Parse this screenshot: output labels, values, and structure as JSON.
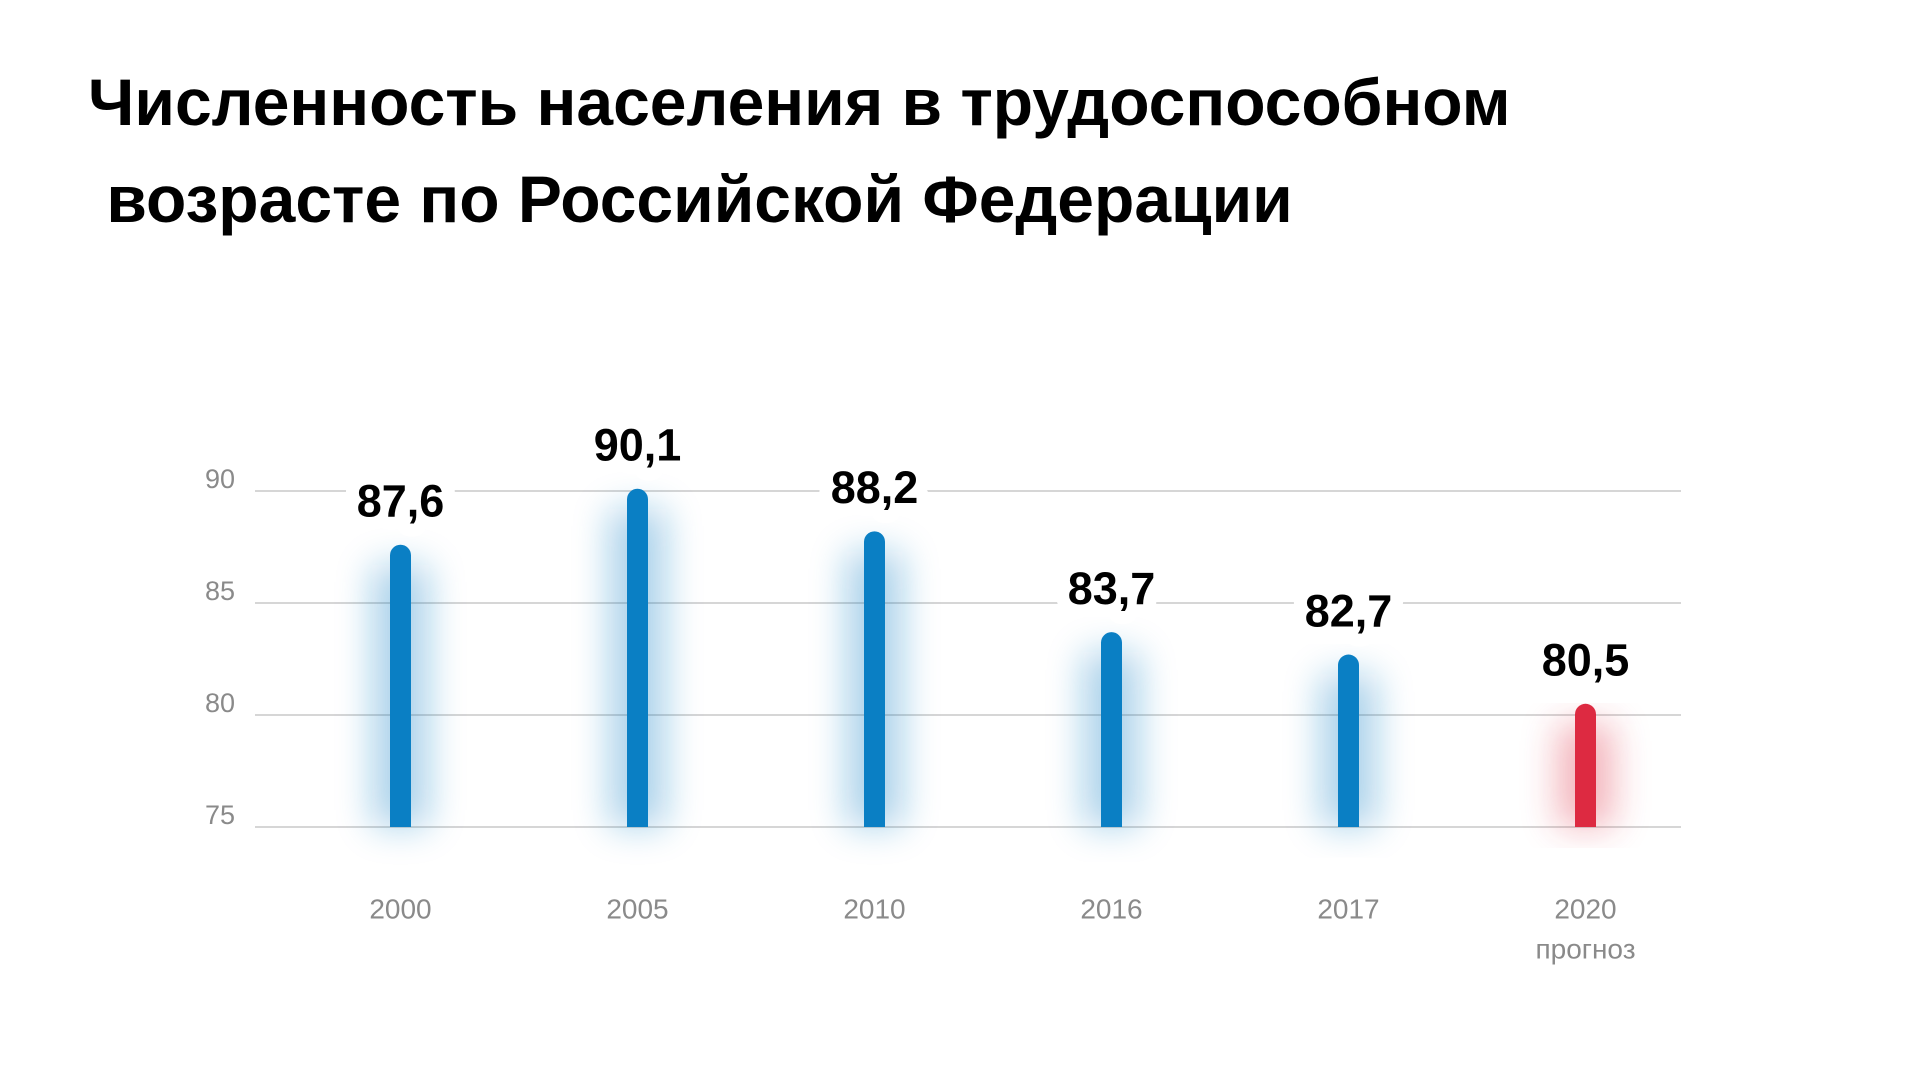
{
  "chart_data": {
    "type": "bar",
    "title": "Численность населения в трудоспособном возрасте по Российской Федерации",
    "categories": [
      "2000",
      "2005",
      "2010",
      "2016",
      "2017",
      "2020"
    ],
    "category_note": "прогноз",
    "values": [
      87.6,
      90.1,
      88.2,
      83.7,
      82.7,
      80.5
    ],
    "value_labels": [
      "87,6",
      "90,1",
      "88,2",
      "83,7",
      "82,7",
      "80,5"
    ],
    "colors": [
      "#0a7fc4",
      "#0a7fc4",
      "#0a7fc4",
      "#0a7fc4",
      "#0a7fc4",
      "#dd2a41"
    ],
    "ylim": [
      75,
      90
    ],
    "yticks": [
      75,
      80,
      85,
      90
    ],
    "grid": true
  }
}
